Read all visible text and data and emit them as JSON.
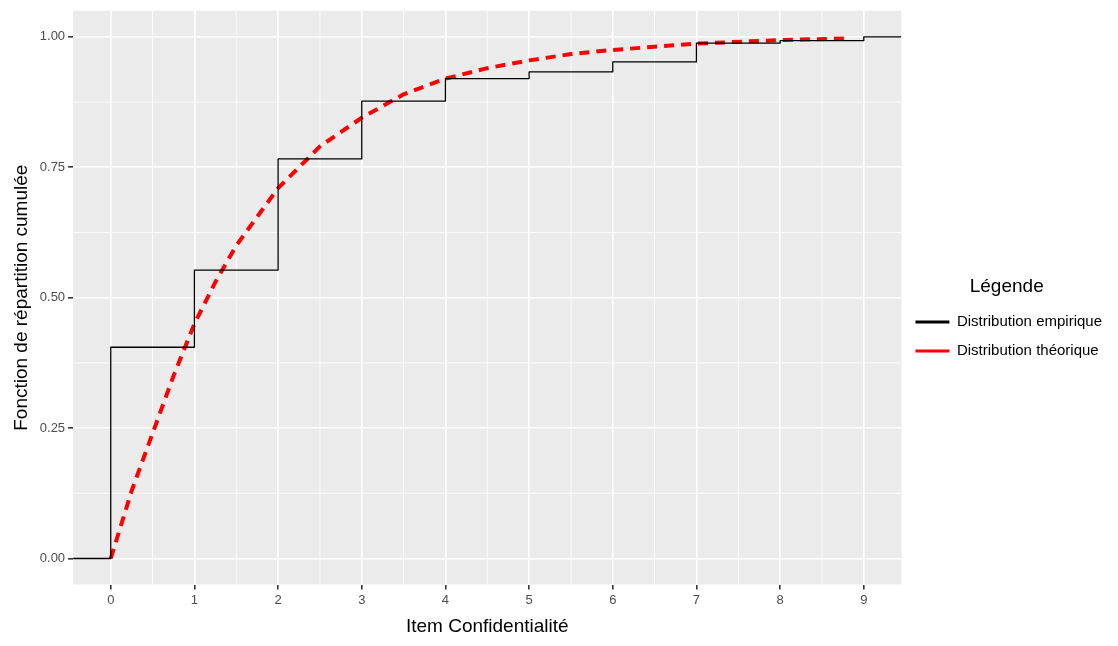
{
  "chart_data": {
    "type": "line",
    "xlabel": "Item Confidentialité",
    "ylabel": "Fonction de répartition cumulée",
    "legend_title": "Légende",
    "legend": "right",
    "grid": true,
    "marker": "none",
    "xlim": [
      -0.45,
      9.45
    ],
    "xticks": [
      0,
      1,
      2,
      3,
      4,
      5,
      6,
      7,
      8,
      9
    ],
    "ylim": [
      -0.05,
      1.05
    ],
    "yticks": [
      {
        "value": 0,
        "label": "0.00"
      },
      {
        "value": 0.25,
        "label": "0.25"
      },
      {
        "value": 0.5,
        "label": "0.50"
      },
      {
        "value": 0.75,
        "label": "0.75"
      },
      {
        "value": 1,
        "label": "1.00"
      }
    ],
    "series": [
      {
        "name": "Distribution empirique",
        "type": "step",
        "color": "#000000",
        "line_style": "solid",
        "x": [
          -0.45,
          0,
          1,
          2,
          3,
          4,
          5,
          6,
          7,
          8,
          9,
          9.45
        ],
        "values": [
          0,
          0.405,
          0.553,
          0.766,
          0.877,
          0.92,
          0.933,
          0.952,
          0.988,
          0.993,
          1,
          1
        ]
      },
      {
        "name": "Distribution théorique",
        "type": "line",
        "color": "#ff0000",
        "line_style": "dashed",
        "x": [
          0,
          0.25,
          0.5,
          0.75,
          1,
          1.25,
          1.5,
          2,
          2.5,
          3,
          3.5,
          4,
          4.5,
          5,
          5.5,
          6,
          7,
          8,
          8.8
        ],
        "values": [
          0,
          0.13,
          0.24,
          0.35,
          0.45,
          0.53,
          0.6,
          0.71,
          0.79,
          0.845,
          0.89,
          0.92,
          0.94,
          0.955,
          0.967,
          0.975,
          0.987,
          0.994,
          0.997
        ]
      }
    ]
  }
}
